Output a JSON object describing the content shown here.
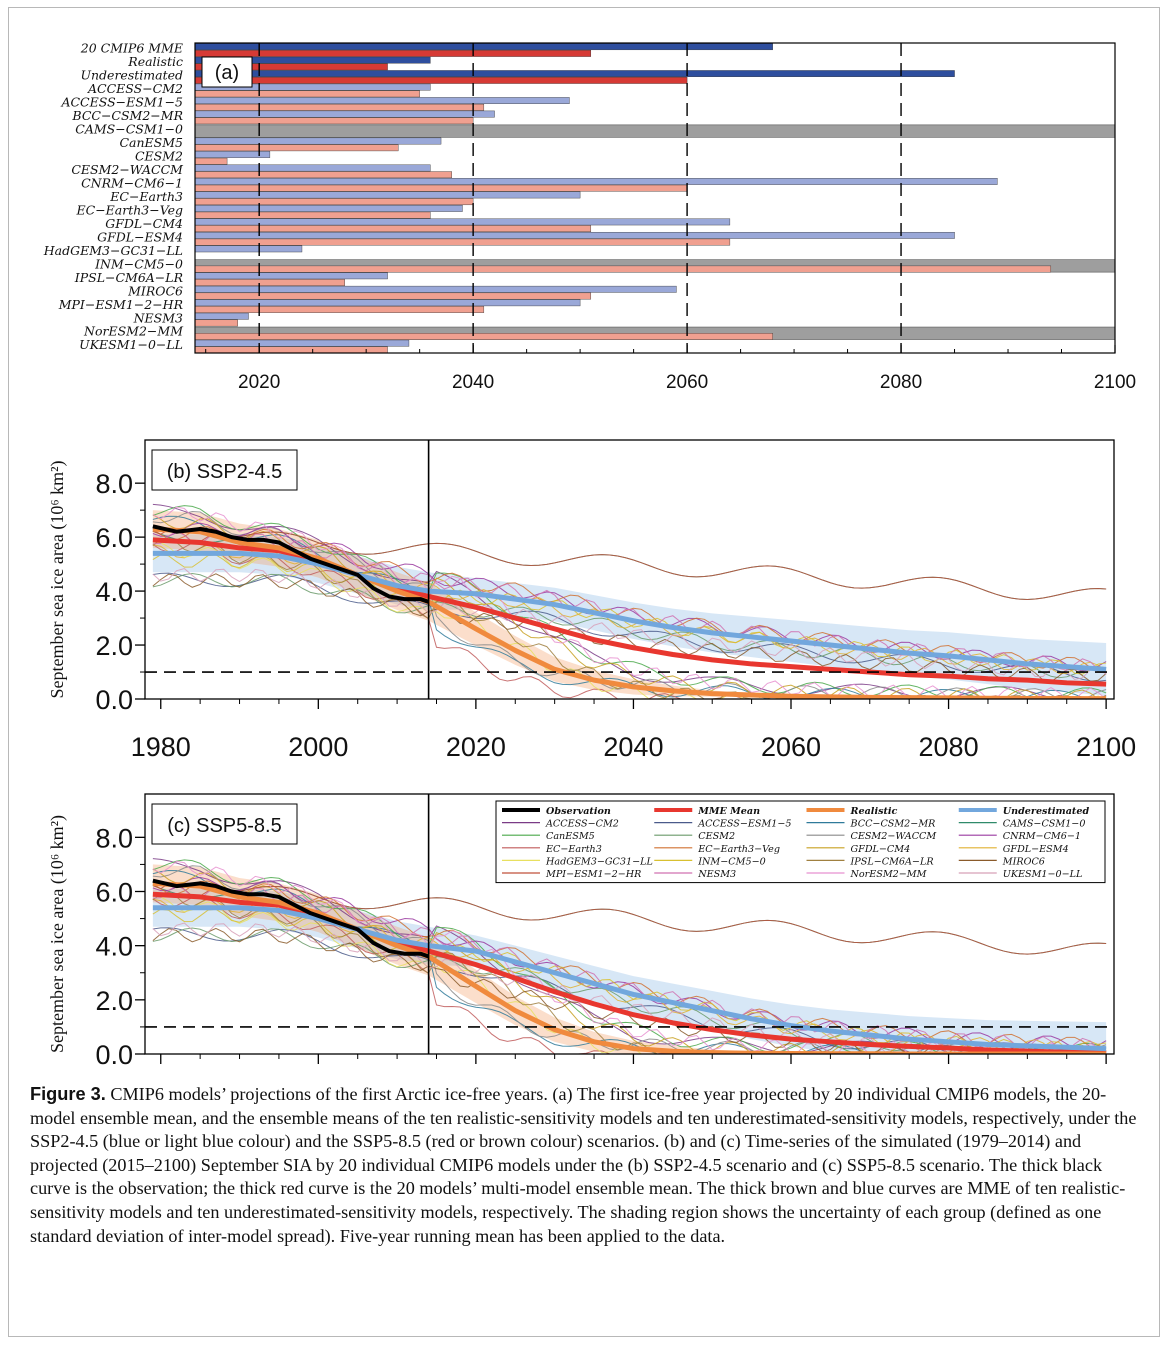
{
  "chart_data": [
    {
      "type": "bar",
      "panel_label": "(a)",
      "orientation": "horizontal",
      "xlim": [
        2014,
        2100
      ],
      "x_ticks": [
        "2020",
        "2040",
        "2060",
        "2080",
        "2100"
      ],
      "x_tick_values": [
        2020,
        2040,
        2060,
        2080,
        2100
      ],
      "dashed_lines_x": [
        2020,
        2040,
        2060,
        2080
      ],
      "categories": [
        "20 CMIP6 MME",
        "Realistic",
        "Underestimated",
        "ACCESS−CM2",
        "ACCESS−ESM1−5",
        "BCC−CSM2−MR",
        "CAMS−CSM1−0",
        "CanESM5",
        "CESM2",
        "CESM2−WACCM",
        "CNRM−CM6−1",
        "EC−Earth3",
        "EC−Earth3−Veg",
        "GFDL−CM4",
        "GFDL−ESM4",
        "HadGEM3−GC31−LL",
        "INM−CM5−0",
        "IPSL−CM6A−LR",
        "MIROC6",
        "MPI−ESM1−2−HR",
        "NESM3",
        "NorESM2−MM",
        "UKESM1−0−LL"
      ],
      "highlighted_categories": 3,
      "no_ice_free_categories": [
        "CAMS−CSM1−0",
        "INM−CM5−0",
        "NorESM2−MM"
      ],
      "series": [
        {
          "name": "SSP2-4.5",
          "color_dark": "#2e4e9e",
          "color_light": "#9aa8d8",
          "values": [
            2068,
            2036,
            2085,
            2036,
            2049,
            2042,
            null,
            2037,
            2021,
            2036,
            2089,
            2050,
            2039,
            2064,
            2085,
            2024,
            null,
            2032,
            2059,
            2050,
            2019,
            null,
            2034
          ]
        },
        {
          "name": "SSP5-8.5",
          "color_dark": "#d63a35",
          "color_light": "#f0a090",
          "values": [
            2051,
            2032,
            2060,
            2035,
            2041,
            2040,
            null,
            2033,
            2017,
            2038,
            2060,
            2040,
            2036,
            2051,
            2064,
            2014,
            2094,
            2028,
            2051,
            2041,
            2018,
            2068,
            2032
          ]
        }
      ]
    },
    {
      "type": "line",
      "panel_label": "(b) SSP2-4.5",
      "ylabel": "September sea ice area (10⁶ km²)",
      "xlim": [
        1978,
        2101
      ],
      "ylim": [
        0,
        9.6
      ],
      "x_ticks": [
        "1980",
        "2000",
        "2020",
        "2040",
        "2060",
        "2080",
        "2100"
      ],
      "y_ticks": [
        "0.0",
        "2.0",
        "4.0",
        "6.0",
        "8.0"
      ],
      "vertical_line_x": 2014,
      "threshold_y": 1.0,
      "x": [
        1979,
        1985,
        1990,
        1995,
        2000,
        2005,
        2010,
        2014,
        2020,
        2025,
        2030,
        2035,
        2040,
        2045,
        2050,
        2055,
        2060,
        2065,
        2070,
        2075,
        2080,
        2085,
        2090,
        2095,
        2100
      ],
      "series": [
        {
          "name": "MME Mean",
          "color": "#e8372f",
          "values": [
            5.9,
            5.8,
            5.6,
            5.5,
            5.1,
            4.6,
            4.1,
            3.8,
            3.4,
            3.0,
            2.6,
            2.2,
            1.9,
            1.65,
            1.45,
            1.3,
            1.2,
            1.1,
            1.0,
            0.9,
            0.85,
            0.75,
            0.7,
            0.6,
            0.55
          ]
        },
        {
          "name": "Realistic",
          "color": "#f08a3e",
          "values": [
            6.3,
            6.2,
            5.8,
            5.6,
            5.2,
            4.6,
            4.0,
            3.6,
            2.6,
            1.8,
            1.1,
            0.7,
            0.45,
            0.3,
            0.2,
            0.15,
            0.1,
            0.08,
            0.06,
            0.05,
            0.04,
            0.03,
            0.02,
            0.02,
            0.01
          ]
        },
        {
          "name": "Underestimated",
          "color": "#72a7dd",
          "values": [
            5.4,
            5.4,
            5.4,
            5.3,
            5.0,
            4.6,
            4.2,
            4.0,
            3.9,
            3.7,
            3.5,
            3.2,
            2.9,
            2.65,
            2.45,
            2.3,
            2.15,
            2.0,
            1.85,
            1.7,
            1.6,
            1.45,
            1.3,
            1.2,
            1.1
          ]
        }
      ],
      "observation": {
        "name": "Observation",
        "color": "#000000",
        "x": [
          1979,
          1982,
          1985,
          1987,
          1989,
          1991,
          1993,
          1995,
          1997,
          1999,
          2001,
          2003,
          2005,
          2007,
          2009,
          2011,
          2013,
          2014
        ],
        "values": [
          6.4,
          6.2,
          6.3,
          6.2,
          6.0,
          5.9,
          5.9,
          5.8,
          5.5,
          5.2,
          5.0,
          4.8,
          4.6,
          4.1,
          3.8,
          3.7,
          3.7,
          3.6
        ]
      }
    },
    {
      "type": "line",
      "panel_label": "(c) SSP5-8.5",
      "ylabel": "September sea ice area (10⁶ km²)",
      "xlim": [
        1978,
        2101
      ],
      "ylim": [
        0,
        9.6
      ],
      "x_ticks": [
        "1980",
        "2000",
        "2020",
        "2040",
        "2060",
        "2080",
        "2100"
      ],
      "y_ticks": [
        "0.0",
        "2.0",
        "4.0",
        "6.0",
        "8.0"
      ],
      "vertical_line_x": 2014,
      "threshold_y": 1.0,
      "x": [
        1979,
        1985,
        1990,
        1995,
        2000,
        2005,
        2010,
        2014,
        2020,
        2025,
        2030,
        2035,
        2040,
        2045,
        2050,
        2055,
        2060,
        2065,
        2070,
        2075,
        2080,
        2085,
        2090,
        2095,
        2100
      ],
      "series": [
        {
          "name": "MME Mean",
          "color": "#e8372f",
          "values": [
            5.9,
            5.8,
            5.6,
            5.5,
            5.1,
            4.6,
            4.1,
            3.8,
            3.3,
            2.8,
            2.3,
            1.85,
            1.45,
            1.15,
            0.9,
            0.7,
            0.55,
            0.45,
            0.35,
            0.28,
            0.22,
            0.15,
            0.1,
            0.07,
            0.05
          ]
        },
        {
          "name": "Realistic",
          "color": "#f08a3e",
          "values": [
            6.3,
            6.2,
            5.8,
            5.6,
            5.2,
            4.6,
            4.0,
            3.6,
            2.5,
            1.6,
            0.9,
            0.45,
            0.2,
            0.1,
            0.05,
            0.03,
            0.02,
            0.01,
            0.01,
            0.0,
            0.0,
            0.0,
            0.0,
            0.0,
            0.0
          ]
        },
        {
          "name": "Underestimated",
          "color": "#72a7dd",
          "values": [
            5.4,
            5.4,
            5.4,
            5.3,
            5.0,
            4.6,
            4.2,
            4.0,
            3.8,
            3.4,
            3.0,
            2.6,
            2.2,
            1.9,
            1.6,
            1.3,
            1.05,
            0.85,
            0.7,
            0.55,
            0.45,
            0.35,
            0.3,
            0.25,
            0.2
          ]
        }
      ],
      "observation": {
        "name": "Observation",
        "color": "#000000",
        "x": [
          1979,
          1982,
          1985,
          1987,
          1989,
          1991,
          1993,
          1995,
          1997,
          1999,
          2001,
          2003,
          2005,
          2007,
          2009,
          2011,
          2013,
          2014
        ],
        "values": [
          6.4,
          6.2,
          6.3,
          6.2,
          6.0,
          5.9,
          5.9,
          5.8,
          5.5,
          5.2,
          5.0,
          4.8,
          4.6,
          4.1,
          3.8,
          3.7,
          3.7,
          3.6
        ]
      },
      "legend": {
        "placement": "top-right",
        "entries": [
          {
            "label": "Observation",
            "color": "#000000",
            "thick": true
          },
          {
            "label": "MME Mean",
            "color": "#e8372f",
            "thick": true
          },
          {
            "label": "Realistic",
            "color": "#f08a3e",
            "thick": true
          },
          {
            "label": "Underestimated",
            "color": "#72a7dd",
            "thick": true
          },
          {
            "label": "ACCESS−CM2",
            "color": "#7a3b86"
          },
          {
            "label": "ACCESS−ESM1−5",
            "color": "#4a5a8a"
          },
          {
            "label": "BCC−CSM2−MR",
            "color": "#2f7a9a"
          },
          {
            "label": "CAMS−CSM1−0",
            "color": "#2f8a6a"
          },
          {
            "label": "CanESM5",
            "color": "#4aa84a"
          },
          {
            "label": "CESM2",
            "color": "#6a9a6a"
          },
          {
            "label": "CESM2−WACCM",
            "color": "#8a8a8a"
          },
          {
            "label": "CNRM−CM6−1",
            "color": "#9a3aa0"
          },
          {
            "label": "EC−Earth3",
            "color": "#c05a5a"
          },
          {
            "label": "EC−Earth3−Veg",
            "color": "#d07030"
          },
          {
            "label": "GFDL−CM4",
            "color": "#c8a020"
          },
          {
            "label": "GFDL−ESM4",
            "color": "#e0b030"
          },
          {
            "label": "HadGEM3−GC31−LL",
            "color": "#e8e060"
          },
          {
            "label": "INM−CM5−0",
            "color": "#d8c030"
          },
          {
            "label": "IPSL−CM6A−LR",
            "color": "#a08040"
          },
          {
            "label": "MIROC6",
            "color": "#8a5a2a"
          },
          {
            "label": "MPI−ESM1−2−HR",
            "color": "#c0503a"
          },
          {
            "label": "NESM3",
            "color": "#d070b0"
          },
          {
            "label": "NorESM2−MM",
            "color": "#e890d0"
          },
          {
            "label": "UKESM1−0−LL",
            "color": "#d8a0b8"
          }
        ]
      }
    }
  ],
  "caption": {
    "label": "Figure 3.",
    "text": "CMIP6 models’ projections of the first Arctic ice-free years. (a) The first ice-free year projected by 20 individual CMIP6 models, the 20-model ensemble mean, and the ensemble means of the ten realistic-sensitivity models and ten underestimated-sensitivity models, respectively, under the SSP2-4.5 (blue or light blue colour) and the SSP5-8.5 (red or brown colour) scenarios. (b) and (c) Time-series of the simulated (1979–2014) and projected (2015–2100) September SIA by 20 individual CMIP6 models under the (b) SSP2-4.5 scenario and (c) SSP5-8.5 scenario. The thick black curve is the observation; the thick red curve is the 20 models’ multi-model ensemble mean. The thick brown and blue curves are MME of ten realistic-sensitivity models and ten underestimated-sensitivity models, respectively. The shading region shows the uncertainty of each group (defined as one standard deviation of inter-model spread). Five-year running mean has been applied to the data."
  }
}
